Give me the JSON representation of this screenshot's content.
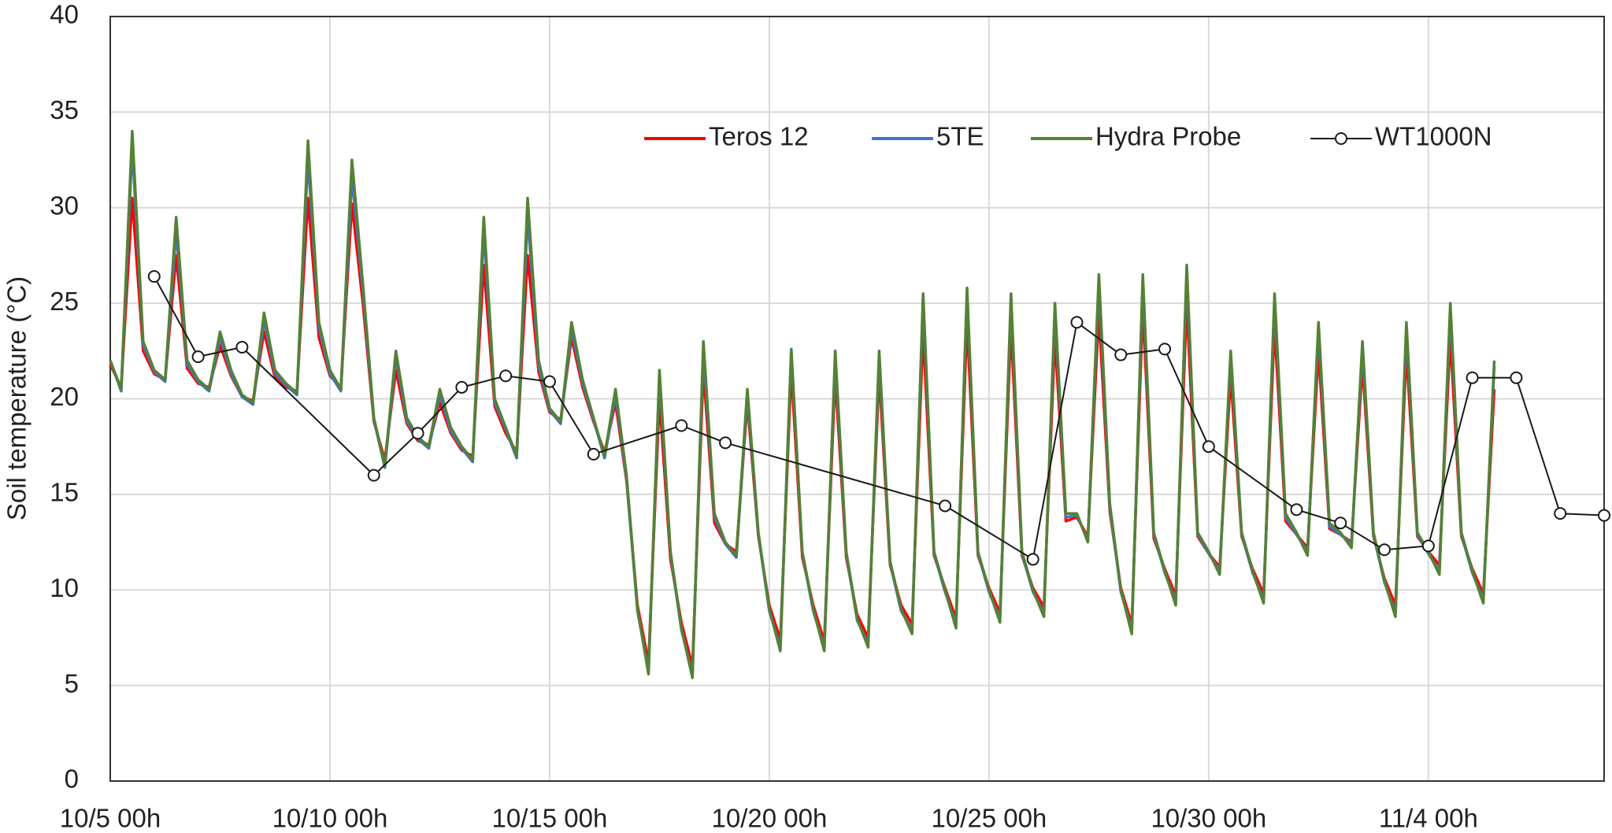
{
  "chart_data": {
    "type": "line",
    "y_label": "Soil temperature (°C)",
    "ylim": [
      0,
      40
    ],
    "yticks": [
      0,
      5,
      10,
      15,
      20,
      25,
      30,
      35,
      40
    ],
    "xlim": [
      "10/5 00h",
      "11/8 00h"
    ],
    "xticks": [
      "10/5 00h",
      "10/10 00h",
      "10/15 00h",
      "10/20 00h",
      "10/25 00h",
      "10/30 00h",
      "11/4 00h"
    ],
    "grid": true,
    "legend": "upper center",
    "x": [
      "10/5 00h",
      "10/5 06h",
      "10/5 12h",
      "10/5 18h",
      "10/6 00h",
      "10/6 06h",
      "10/6 12h",
      "10/6 18h",
      "10/7 00h",
      "10/7 06h",
      "10/7 12h",
      "10/7 18h",
      "10/8 00h",
      "10/8 06h",
      "10/8 12h",
      "10/8 18h",
      "10/9 00h",
      "10/9 06h",
      "10/9 12h",
      "10/9 18h",
      "10/10 00h",
      "10/10 06h",
      "10/10 12h",
      "10/10 18h",
      "10/11 00h",
      "10/11 06h",
      "10/11 12h",
      "10/11 18h",
      "10/12 00h",
      "10/12 06h",
      "10/12 12h",
      "10/12 18h",
      "10/13 00h",
      "10/13 06h",
      "10/13 12h",
      "10/13 18h",
      "10/14 00h",
      "10/14 06h",
      "10/14 12h",
      "10/14 18h",
      "10/15 00h",
      "10/15 06h",
      "10/15 12h",
      "10/15 18h",
      "10/16 00h",
      "10/16 06h",
      "10/16 12h",
      "10/16 18h",
      "10/17 00h",
      "10/17 06h",
      "10/17 12h",
      "10/17 18h",
      "10/18 00h",
      "10/18 06h",
      "10/18 12h",
      "10/18 18h",
      "10/19 00h",
      "10/19 06h",
      "10/19 12h",
      "10/19 18h",
      "10/20 00h",
      "10/20 06h",
      "10/20 12h",
      "10/20 18h",
      "10/21 00h",
      "10/21 06h",
      "10/21 12h",
      "10/21 18h",
      "10/22 00h",
      "10/22 06h",
      "10/22 12h",
      "10/22 18h",
      "10/23 00h",
      "10/23 06h",
      "10/23 12h",
      "10/23 18h",
      "10/24 00h",
      "10/24 06h",
      "10/24 12h",
      "10/24 18h",
      "10/25 00h",
      "10/25 06h",
      "10/25 12h",
      "10/25 18h",
      "10/26 00h",
      "10/26 06h",
      "10/26 12h",
      "10/26 18h",
      "10/27 00h",
      "10/27 06h",
      "10/27 12h",
      "10/27 18h",
      "10/28 00h",
      "10/28 06h",
      "10/28 12h",
      "10/28 18h",
      "10/29 00h",
      "10/29 06h",
      "10/29 12h",
      "10/29 18h",
      "10/30 00h",
      "10/30 06h",
      "10/30 12h",
      "10/30 18h",
      "10/31 00h",
      "10/31 06h",
      "10/31 12h",
      "10/31 18h",
      "11/1 00h",
      "11/1 06h",
      "11/1 12h",
      "11/1 18h",
      "11/2 00h",
      "11/2 06h",
      "11/2 12h",
      "11/2 18h",
      "11/3 00h",
      "11/3 06h",
      "11/3 12h",
      "11/3 18h",
      "11/4 00h",
      "11/4 06h",
      "11/4 12h",
      "11/4 18h",
      "11/5 00h",
      "11/5 06h",
      "11/5 12h"
    ],
    "series": [
      {
        "name": "Teros 12",
        "color": "#ff0000",
        "values": [
          21.8,
          20.6,
          30.5,
          22.5,
          21.3,
          21,
          27.5,
          21.6,
          20.8,
          20.6,
          22.8,
          21.2,
          20.1,
          19.9,
          23.5,
          21.1,
          20.6,
          20.4,
          30.5,
          23.2,
          21.2,
          20.6,
          30.2,
          25,
          18.8,
          16.8,
          21.5,
          18.7,
          17.8,
          17.6,
          19.8,
          18.2,
          17.3,
          17,
          27,
          19.6,
          18.2,
          17.2,
          27.5,
          21.4,
          19.3,
          18.9,
          23.2,
          20.6,
          18.8,
          17.2,
          19.8,
          15.7,
          9.2,
          6.2,
          20,
          11.6,
          8.3,
          6,
          21.5,
          13.5,
          12.4,
          12,
          19.8,
          12.8,
          9.2,
          7.4,
          21.5,
          11.7,
          9.2,
          7.3,
          21.2,
          11.7,
          8.7,
          7.5,
          21.3,
          11.3,
          9.2,
          8.2,
          23.5,
          11.8,
          10.1,
          8.5,
          24,
          11.8,
          10.1,
          8.8,
          23.8,
          11.8,
          10.1,
          9.1,
          23.2,
          13.6,
          13.8,
          12.8,
          24.5,
          14.1,
          10.1,
          8.2,
          24.8,
          12.7,
          11.1,
          9.7,
          25,
          12.8,
          11.9,
          11.2,
          21.2,
          12.8,
          11.1,
          9.8,
          23.8,
          13.6,
          12.9,
          12.2,
          22.5,
          13.2,
          12.9,
          12.5,
          21.8,
          12.8,
          10.6,
          9.2,
          22.5,
          12.8,
          12,
          11.3,
          23.2,
          12.8,
          11.1,
          9.8,
          20.5
        ]
      },
      {
        "name": "5TE",
        "color": "#4472c4",
        "values": [
          22,
          20.4,
          33.2,
          22.8,
          21.4,
          20.9,
          28.8,
          21.8,
          20.9,
          20.4,
          23.2,
          21.3,
          20.1,
          19.7,
          24.1,
          21.3,
          20.7,
          20.2,
          32.6,
          23.7,
          21.3,
          20.4,
          31.6,
          25.6,
          18.9,
          16.4,
          22.2,
          18.8,
          17.9,
          17.4,
          20.2,
          18.3,
          17.4,
          16.7,
          28.8,
          19.8,
          18.4,
          16.9,
          29.6,
          21.7,
          19.4,
          18.7,
          23.6,
          20.8,
          18.9,
          16.9,
          20.2,
          15.8,
          8.9,
          5.8,
          21.1,
          11.9,
          7.9,
          5.6,
          22.5,
          13.8,
          12.4,
          11.7,
          20.2,
          12.9,
          8.9,
          7,
          22.6,
          11.9,
          8.9,
          7,
          22.1,
          11.9,
          8.4,
          7.2,
          22.1,
          11.4,
          8.9,
          7.9,
          25.1,
          11.9,
          9.9,
          8.2,
          25.4,
          11.9,
          9.9,
          8.5,
          25.1,
          11.9,
          9.9,
          8.8,
          24.6,
          13.8,
          13.9,
          12.6,
          26,
          14.3,
          9.9,
          7.9,
          26,
          12.9,
          10.9,
          9.4,
          26.5,
          12.9,
          11.9,
          11,
          22.2,
          12.9,
          10.9,
          9.5,
          25.1,
          13.8,
          12.9,
          12,
          23.6,
          13.3,
          12.9,
          12.4,
          22.6,
          12.9,
          10.4,
          8.8,
          23.6,
          12.9,
          11.9,
          11,
          24.6,
          12.9,
          10.9,
          9.5,
          21.7
        ]
      },
      {
        "name": "Hydra Probe",
        "color": "#548235",
        "values": [
          22,
          20.5,
          34,
          23,
          21.5,
          21,
          29.5,
          22,
          21,
          20.5,
          23.5,
          21.5,
          20.2,
          19.8,
          24.5,
          21.5,
          20.8,
          20.3,
          33.5,
          24,
          21.5,
          20.5,
          32.5,
          26,
          19,
          16.5,
          22.5,
          19,
          18,
          17.5,
          20.5,
          18.5,
          17.5,
          16.8,
          29.5,
          20,
          18.5,
          17,
          30.5,
          22,
          19.5,
          18.8,
          24,
          21,
          19,
          17,
          20.5,
          16,
          9,
          5.6,
          21.5,
          12,
          8,
          5.4,
          23,
          14,
          12.5,
          11.8,
          20.5,
          13,
          9,
          6.8,
          22.5,
          12,
          9,
          6.8,
          22.5,
          12,
          8.5,
          7,
          22.5,
          11.5,
          9,
          7.7,
          25.5,
          12,
          10,
          8,
          25.8,
          12,
          10,
          8.3,
          25.5,
          12,
          10,
          8.6,
          25,
          14,
          14,
          12.5,
          26.5,
          14.5,
          10,
          7.7,
          26.5,
          13,
          11,
          9.2,
          27,
          13,
          12,
          10.8,
          22.5,
          13,
          11,
          9.3,
          25.5,
          14,
          13,
          11.8,
          24,
          13.5,
          13,
          12.2,
          23,
          13,
          10.5,
          8.6,
          24,
          13,
          12,
          10.8,
          25,
          13,
          11,
          9.3,
          22
        ]
      },
      {
        "name": "WT1000N",
        "color": "#1a1a1a",
        "marker": "circle",
        "x": [
          "10/6 00h",
          "10/7 00h",
          "10/8 00h",
          "10/11 00h",
          "10/12 00h",
          "10/13 00h",
          "10/14 00h",
          "10/15 00h",
          "10/16 00h",
          "10/18 00h",
          "10/19 00h",
          "10/24 00h",
          "10/26 00h",
          "10/27 00h",
          "10/28 00h",
          "10/29 00h",
          "10/30 00h",
          "11/1 00h",
          "11/2 00h",
          "11/3 00h",
          "11/4 00h",
          "11/5 00h",
          "11/6 00h",
          "11/7 00h",
          "11/8 00h"
        ],
        "values": [
          26.4,
          22.2,
          22.7,
          16,
          18.2,
          20.6,
          21.2,
          20.9,
          17.1,
          18.6,
          17.7,
          14.4,
          11.6,
          24,
          22.3,
          22.6,
          17.5,
          14.2,
          13.5,
          12.1,
          12.3,
          21.1,
          21.1,
          14,
          13.9
        ]
      }
    ]
  }
}
